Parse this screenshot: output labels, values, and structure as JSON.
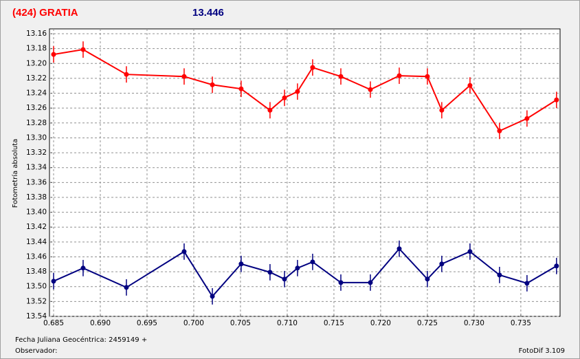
{
  "chart_data": {
    "type": "line",
    "title": "(424) GRATIA",
    "subtitle": "13.446",
    "y_label": "Fotometría absoluta",
    "x_label": "Fecha Juliana Geocéntrica: 2459149 +",
    "observer_label": "Observador:",
    "footer": "FotoDif 3.109",
    "y_inverted": true,
    "grid": true,
    "xlim": [
      0.68456,
      0.7392
    ],
    "ylim": [
      13.1535,
      13.54
    ],
    "xticks": [
      0.685,
      {
        "value": 0.69,
        "label": "0.690"
      },
      0.695,
      {
        "value": 0.7,
        "label": "0.700"
      },
      0.705,
      {
        "value": 0.71,
        "label": "0.710"
      },
      0.715,
      {
        "value": 0.72,
        "label": "0.720"
      },
      0.725,
      {
        "value": 0.73,
        "label": "0.730"
      },
      0.735
    ],
    "yticks": [
      13.16,
      13.18,
      {
        "value": 13.2,
        "label": "13.20"
      },
      13.22,
      13.24,
      13.26,
      13.28,
      {
        "value": 13.3,
        "label": "13.30"
      },
      13.32,
      13.34,
      13.36,
      13.38,
      {
        "value": 13.4,
        "label": "13.40"
      },
      13.42,
      13.44,
      13.46,
      13.48,
      {
        "value": 13.5,
        "label": "13.50"
      },
      13.52,
      13.54
    ],
    "x": [
      0.685,
      0.68816,
      0.69279,
      0.69897,
      0.70199,
      0.70507,
      0.70816,
      0.70971,
      0.7111,
      0.71272,
      0.71574,
      0.7189,
      0.72199,
      0.725,
      0.72654,
      0.72956,
      0.73272,
      0.73566,
      0.73882
    ],
    "series": [
      {
        "color": "#ff0000",
        "values": [
          13.1878,
          13.1813,
          13.2147,
          13.2175,
          13.2286,
          13.2341,
          13.2629,
          13.2462,
          13.2378,
          13.2054,
          13.2175,
          13.2351,
          13.2165,
          13.2175,
          13.2629,
          13.2295,
          13.2907,
          13.274,
          13.249
        ],
        "errors": [
          0.011,
          0.011,
          0.011,
          0.011,
          0.011,
          0.011,
          0.011,
          0.011,
          0.011,
          0.011,
          0.011,
          0.011,
          0.011,
          0.011,
          0.011,
          0.011,
          0.011,
          0.011,
          0.011
        ]
      },
      {
        "color": "#000080",
        "values": [
          13.4927,
          13.4751,
          13.5011,
          13.4529,
          13.5131,
          13.4695,
          13.4807,
          13.4899,
          13.4751,
          13.4668,
          13.4946,
          13.4946,
          13.4491,
          13.4899,
          13.4695,
          13.4529,
          13.4844,
          13.4955,
          13.4723
        ],
        "errors": [
          0.011,
          0.011,
          0.011,
          0.011,
          0.011,
          0.011,
          0.011,
          0.011,
          0.011,
          0.011,
          0.011,
          0.011,
          0.011,
          0.011,
          0.011,
          0.011,
          0.011,
          0.011,
          0.011
        ]
      }
    ]
  }
}
